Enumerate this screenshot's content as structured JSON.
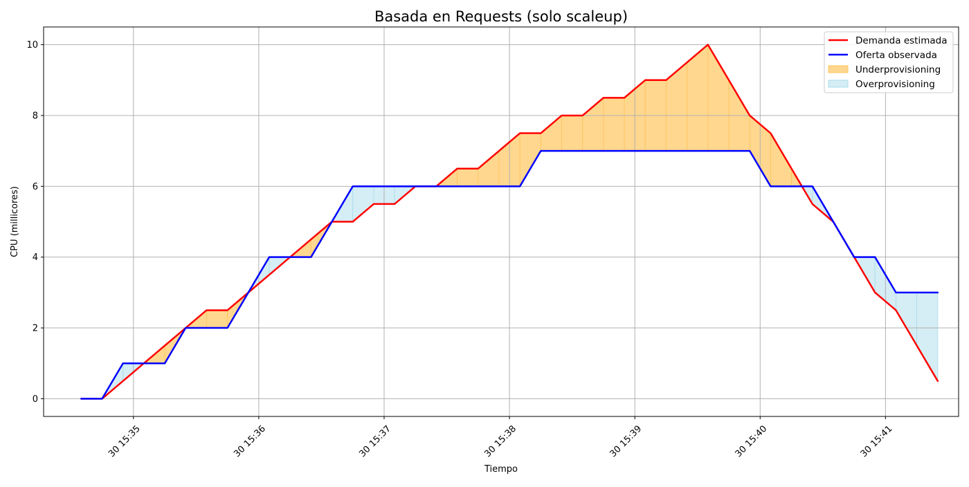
{
  "chart_data": {
    "type": "line",
    "title": "Basada en Requests (solo scaleup)",
    "xlabel": "Tiempo",
    "ylabel": "CPU (millicores)",
    "x": [
      "15:34:35",
      "15:34:45",
      "15:34:55",
      "15:35:05",
      "15:35:15",
      "15:35:25",
      "15:35:35",
      "15:35:45",
      "15:35:55",
      "15:36:05",
      "15:36:15",
      "15:36:25",
      "15:36:35",
      "15:36:45",
      "15:36:55",
      "15:37:05",
      "15:37:15",
      "15:37:25",
      "15:37:35",
      "15:37:45",
      "15:37:55",
      "15:38:05",
      "15:38:15",
      "15:38:25",
      "15:38:35",
      "15:38:45",
      "15:38:55",
      "15:39:05",
      "15:39:15",
      "15:39:25",
      "15:39:35",
      "15:39:45",
      "15:39:55",
      "15:40:05",
      "15:40:15",
      "15:40:25",
      "15:40:35",
      "15:40:45",
      "15:40:55",
      "15:41:05",
      "15:41:15",
      "15:41:25"
    ],
    "series": [
      {
        "name": "Demanda estimada",
        "color": "#ff0000",
        "values": [
          0,
          0,
          0.5,
          1,
          1.5,
          2,
          2.5,
          2.5,
          3,
          3.5,
          4,
          4.5,
          5,
          5,
          5.5,
          5.5,
          6,
          6,
          6.5,
          6.5,
          7,
          7.5,
          7.5,
          8,
          8,
          8.5,
          8.5,
          9,
          9,
          9.5,
          10,
          9,
          8,
          7.5,
          6.5,
          5.5,
          5,
          4,
          3,
          2.5,
          1.5,
          0.5
        ]
      },
      {
        "name": "Oferta observada",
        "color": "#0000ff",
        "values": [
          0,
          0,
          1,
          1,
          1,
          2,
          2,
          2,
          3,
          4,
          4,
          4,
          5,
          6,
          6,
          6,
          6,
          6,
          6,
          6,
          6,
          6,
          7,
          7,
          7,
          7,
          7,
          7,
          7,
          7,
          7,
          7,
          7,
          6,
          6,
          6,
          5,
          4,
          4,
          3,
          3,
          3
        ]
      }
    ],
    "fills": [
      {
        "name": "Underprovisioning",
        "color": "#ffd78f",
        "edge": "#ffc45c",
        "where": "demand > supply"
      },
      {
        "name": "Overprovisioning",
        "color": "#d5edf5",
        "edge": "#a9dbe9",
        "where": "supply > demand"
      }
    ],
    "x_ticks": [
      "30 15:35",
      "30 15:36",
      "30 15:37",
      "30 15:38",
      "30 15:39",
      "30 15:40",
      "30 15:41"
    ],
    "y_ticks": [
      0,
      2,
      4,
      6,
      8,
      10
    ],
    "ylim": [
      -0.5,
      10.5
    ],
    "xlim": [
      "15:34:17",
      "15:41:35"
    ],
    "grid": true,
    "legend_position": "top-right"
  }
}
